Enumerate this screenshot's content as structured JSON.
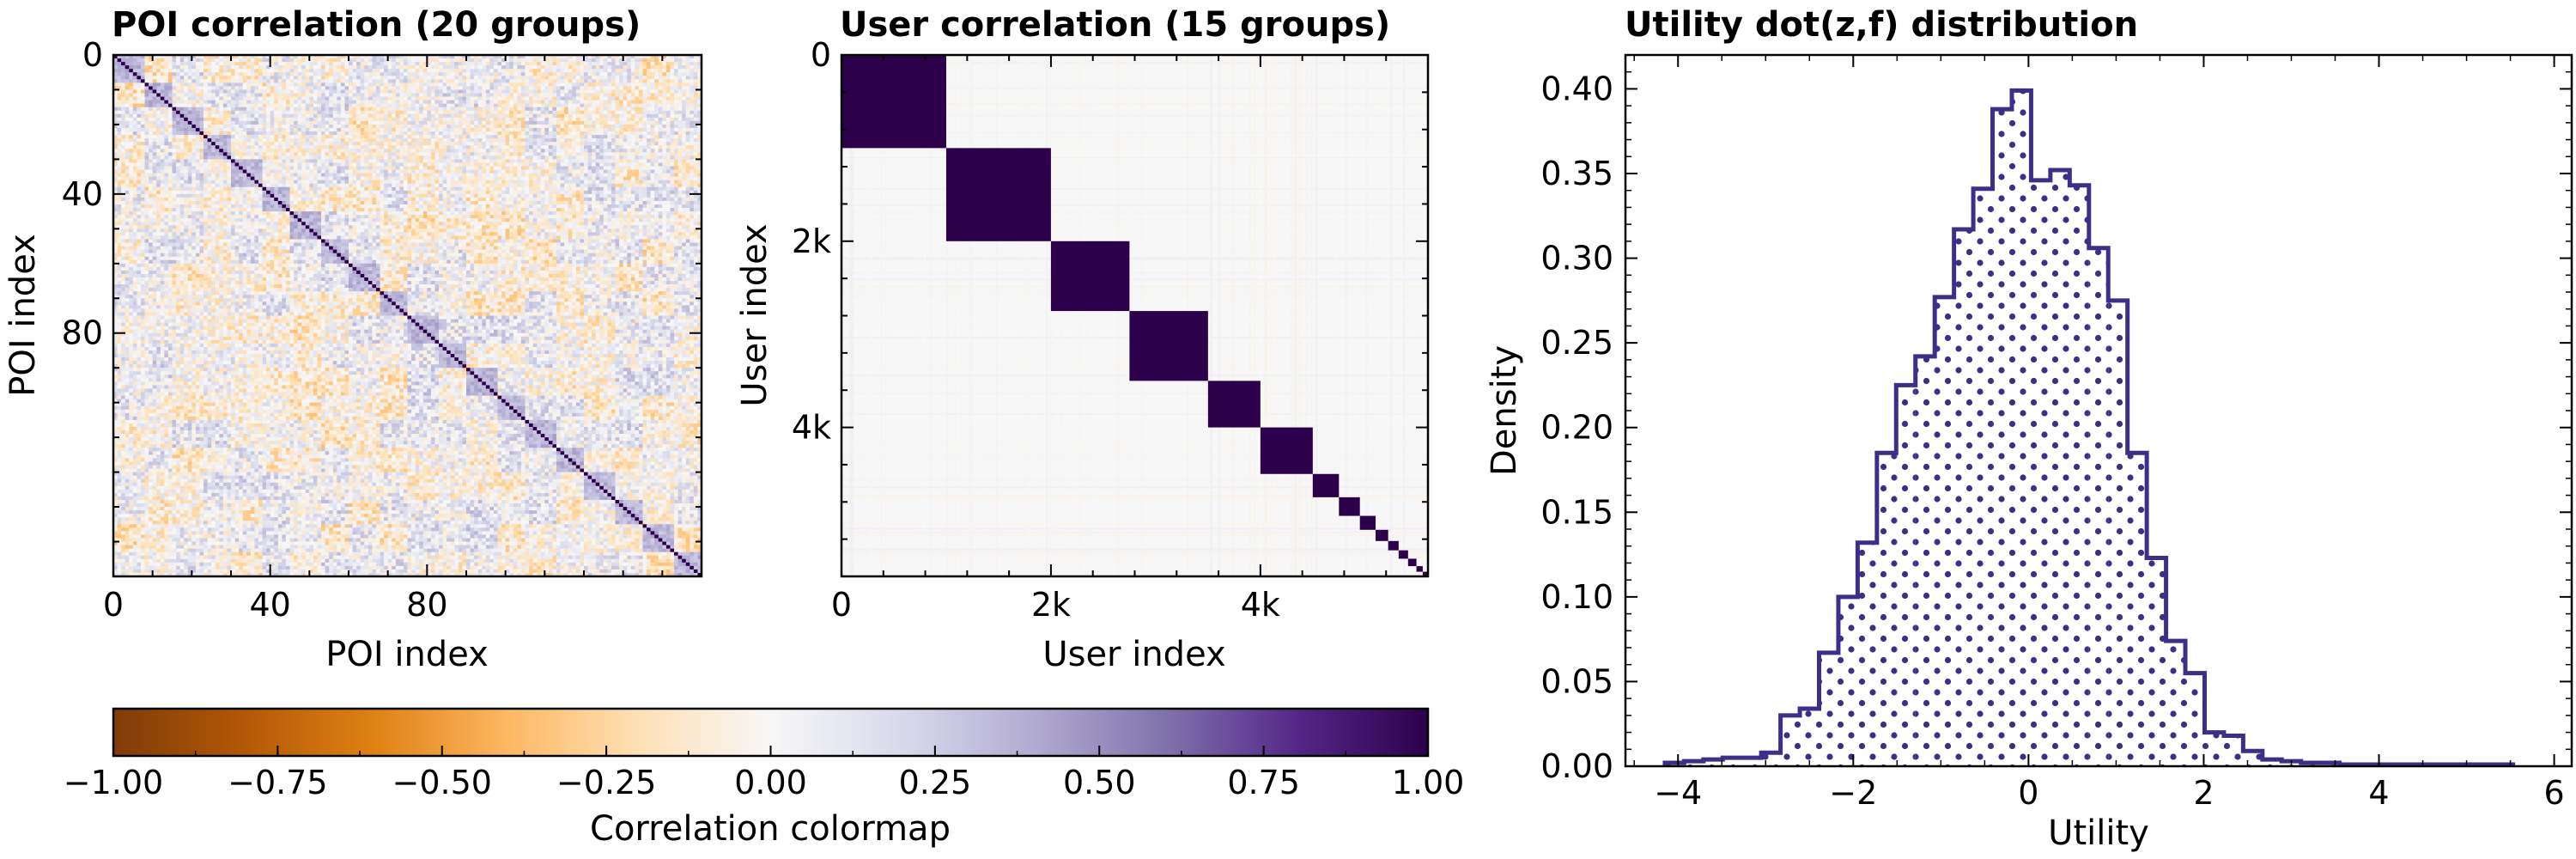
{
  "colors": {
    "cmap": [
      "#7f3b08",
      "#b35806",
      "#e08214",
      "#fdb863",
      "#fee0b6",
      "#f7f7f7",
      "#d8daeb",
      "#b2abd2",
      "#8073ac",
      "#542788",
      "#2d004b"
    ],
    "hist_line": "#3d2e87",
    "dots": "#3d2e87"
  },
  "chart_data": [
    {
      "type": "heatmap",
      "title": "POI correlation (20 groups)",
      "xlabel": "POI index",
      "ylabel": "POI index",
      "n": 150,
      "groups": 20,
      "x_ticks": [
        "0",
        "40",
        "80"
      ],
      "x_tick_values": [
        0,
        40,
        80
      ],
      "y_ticks": [
        "0",
        "40",
        "80"
      ],
      "y_tick_values": [
        0,
        40,
        80
      ],
      "vmin": -1.0,
      "vmax": 1.0,
      "diagonal_value": 1.0,
      "within_group_mean": 0.35,
      "between_group_range": [
        -0.3,
        0.3
      ]
    },
    {
      "type": "heatmap",
      "title": "User correlation (15 groups)",
      "xlabel": "User index",
      "ylabel": "User index",
      "n": 5600,
      "groups": 15,
      "group_sizes": [
        1000,
        1000,
        750,
        750,
        500,
        500,
        250,
        200,
        150,
        120,
        100,
        90,
        80,
        60,
        50
      ],
      "x_ticks": [
        "0",
        "2k",
        "4k"
      ],
      "x_tick_values": [
        0,
        2000,
        4000
      ],
      "y_ticks": [
        "0",
        "2k",
        "4k"
      ],
      "y_tick_values": [
        0,
        2000,
        4000
      ],
      "vmin": -1.0,
      "vmax": 1.0,
      "within_group_value": 1.0,
      "between_group_range": [
        -0.05,
        0.05
      ]
    },
    {
      "type": "bar",
      "style": "step-histogram",
      "title": "Utility dot(z,f) distribution",
      "xlabel": "Utility",
      "ylabel": "Density",
      "xlim": [
        -4.6,
        6.2
      ],
      "ylim": [
        0,
        0.42
      ],
      "x_ticks": [
        "−4",
        "−2",
        "0",
        "2",
        "4",
        "6"
      ],
      "x_tick_values": [
        -4,
        -2,
        0,
        2,
        4,
        6
      ],
      "y_ticks": [
        "0.00",
        "0.05",
        "0.10",
        "0.15",
        "0.20",
        "0.25",
        "0.30",
        "0.35",
        "0.40"
      ],
      "y_tick_values": [
        0,
        0.05,
        0.1,
        0.15,
        0.2,
        0.25,
        0.3,
        0.35,
        0.4
      ],
      "bin_edges": [
        -4.15,
        -3.93,
        -3.71,
        -3.49,
        -3.27,
        -3.05,
        -2.83,
        -2.61,
        -2.39,
        -2.17,
        -1.95,
        -1.73,
        -1.51,
        -1.29,
        -1.07,
        -0.85,
        -0.63,
        -0.41,
        -0.19,
        0.03,
        0.25,
        0.47,
        0.69,
        0.91,
        1.13,
        1.35,
        1.57,
        1.79,
        2.01,
        2.23,
        2.45,
        2.67,
        2.89,
        3.11,
        3.33,
        3.55,
        3.77,
        3.99,
        4.21,
        4.43,
        4.65,
        4.87,
        5.09,
        5.31,
        5.53
      ],
      "values": [
        0.002,
        0.003,
        0.004,
        0.005,
        0.005,
        0.008,
        0.03,
        0.034,
        0.067,
        0.1,
        0.132,
        0.185,
        0.225,
        0.242,
        0.277,
        0.317,
        0.341,
        0.388,
        0.399,
        0.346,
        0.352,
        0.343,
        0.306,
        0.275,
        0.185,
        0.123,
        0.074,
        0.055,
        0.02,
        0.018,
        0.009,
        0.004,
        0.003,
        0.002,
        0.002,
        0.001,
        0.001,
        0.001,
        0.001,
        0.001,
        0.001,
        0.001,
        0.001,
        0.001
      ]
    },
    {
      "type": "heatmap",
      "role": "colorbar",
      "label": "Correlation colormap",
      "vmin": -1.0,
      "vmax": 1.0,
      "ticks": [
        "−1.00",
        "−0.75",
        "−0.50",
        "−0.25",
        "0.00",
        "0.25",
        "0.50",
        "0.75",
        "1.00"
      ],
      "tick_values": [
        -1,
        -0.75,
        -0.5,
        -0.25,
        0,
        0.25,
        0.5,
        0.75,
        1
      ]
    }
  ]
}
